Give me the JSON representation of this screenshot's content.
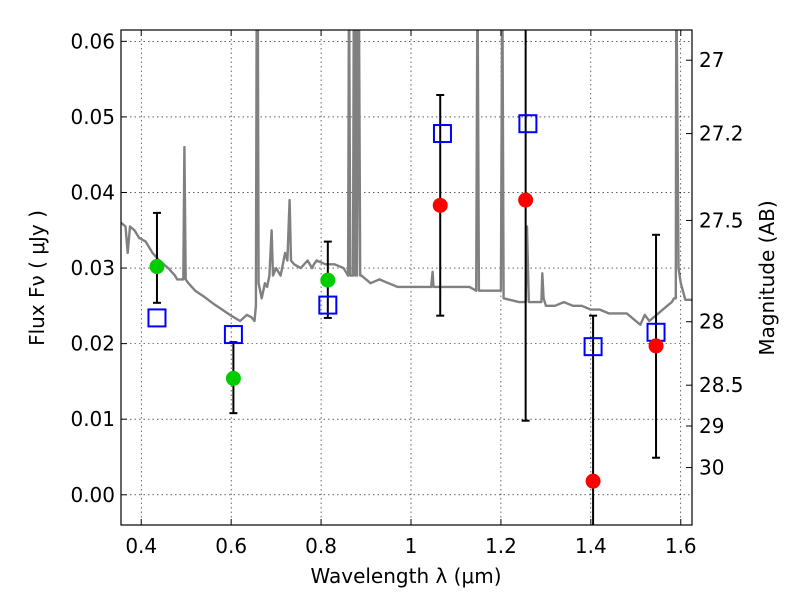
{
  "chart_data": {
    "type": "scatter",
    "xlabel": "Wavelength  λ (μm)",
    "ylabel": "Flux  Fν  ( μJy )",
    "y2label": "Magnitude (AB)",
    "xlim": [
      0.355,
      1.625
    ],
    "ylim": [
      -0.004,
      0.0615
    ],
    "grid": true,
    "x_ticks": [
      0.4,
      0.6,
      0.8,
      1.0,
      1.2,
      1.4,
      1.6
    ],
    "x_tick_labels": [
      "0.4",
      "0.6",
      "0.8",
      "1",
      "1.2",
      "1.4",
      "1.6"
    ],
    "y_ticks": [
      0.0,
      0.01,
      0.02,
      0.03,
      0.04,
      0.05,
      0.06
    ],
    "y_tick_labels": [
      "0.00",
      "0.01",
      "0.02",
      "0.03",
      "0.04",
      "0.05",
      "0.06"
    ],
    "y2_ticks": [
      {
        "label": "27",
        "flux": 0.0575
      },
      {
        "label": "27.2",
        "flux": 0.0478
      },
      {
        "label": "27.5",
        "flux": 0.0363
      },
      {
        "label": "28",
        "flux": 0.0229
      },
      {
        "label": "28.5",
        "flux": 0.0145
      },
      {
        "label": "29",
        "flux": 0.0091
      },
      {
        "label": "30",
        "flux": 0.0036
      }
    ],
    "model_spectrum": {
      "color": "#808080",
      "points": [
        [
          0.355,
          0.036
        ],
        [
          0.365,
          0.0355
        ],
        [
          0.37,
          0.032
        ],
        [
          0.375,
          0.0355
        ],
        [
          0.385,
          0.035
        ],
        [
          0.395,
          0.034
        ],
        [
          0.41,
          0.0335
        ],
        [
          0.425,
          0.032
        ],
        [
          0.44,
          0.031
        ],
        [
          0.46,
          0.03
        ],
        [
          0.475,
          0.029
        ],
        [
          0.48,
          0.0285
        ],
        [
          0.49,
          0.0285
        ],
        [
          0.4935,
          0.0285
        ],
        [
          0.496,
          0.046
        ],
        [
          0.499,
          0.0285
        ],
        [
          0.505,
          0.028
        ],
        [
          0.52,
          0.027
        ],
        [
          0.54,
          0.0262
        ],
        [
          0.56,
          0.0253
        ],
        [
          0.58,
          0.0245
        ],
        [
          0.6,
          0.0237
        ],
        [
          0.62,
          0.023
        ],
        [
          0.635,
          0.0238
        ],
        [
          0.645,
          0.0235
        ],
        [
          0.652,
          0.023
        ],
        [
          0.655,
          0.025
        ],
        [
          0.657,
          0.07
        ],
        [
          0.659,
          0.07
        ],
        [
          0.661,
          0.028
        ],
        [
          0.668,
          0.026
        ],
        [
          0.675,
          0.028
        ],
        [
          0.68,
          0.0275
        ],
        [
          0.685,
          0.029
        ],
        [
          0.69,
          0.035
        ],
        [
          0.693,
          0.029
        ],
        [
          0.7,
          0.03
        ],
        [
          0.71,
          0.029
        ],
        [
          0.72,
          0.032
        ],
        [
          0.725,
          0.031
        ],
        [
          0.73,
          0.039
        ],
        [
          0.733,
          0.031
        ],
        [
          0.74,
          0.0305
        ],
        [
          0.755,
          0.03
        ],
        [
          0.77,
          0.031
        ],
        [
          0.78,
          0.03
        ],
        [
          0.784,
          0.0305
        ],
        [
          0.79,
          0.031
        ],
        [
          0.81,
          0.0305
        ],
        [
          0.83,
          0.0305
        ],
        [
          0.85,
          0.03
        ],
        [
          0.86,
          0.029
        ],
        [
          0.862,
          0.07
        ],
        [
          0.865,
          0.029
        ],
        [
          0.871,
          0.029
        ],
        [
          0.873,
          0.07
        ],
        [
          0.876,
          0.029
        ],
        [
          0.878,
          0.07
        ],
        [
          0.88,
          0.029
        ],
        [
          0.884,
          0.07
        ],
        [
          0.887,
          0.029
        ],
        [
          0.89,
          0.029
        ],
        [
          0.91,
          0.028
        ],
        [
          0.93,
          0.0285
        ],
        [
          0.95,
          0.028
        ],
        [
          0.97,
          0.0275
        ],
        [
          0.99,
          0.0275
        ],
        [
          1.01,
          0.0275
        ],
        [
          1.03,
          0.0275
        ],
        [
          1.045,
          0.0275
        ],
        [
          1.048,
          0.0295
        ],
        [
          1.05,
          0.0275
        ],
        [
          1.07,
          0.0275
        ],
        [
          1.1,
          0.0275
        ],
        [
          1.13,
          0.0275
        ],
        [
          1.145,
          0.027
        ],
        [
          1.148,
          0.07
        ],
        [
          1.151,
          0.027
        ],
        [
          1.17,
          0.027
        ],
        [
          1.19,
          0.027
        ],
        [
          1.2,
          0.027
        ],
        [
          1.203,
          0.07
        ],
        [
          1.206,
          0.026
        ],
        [
          1.22,
          0.0258
        ],
        [
          1.24,
          0.0255
        ],
        [
          1.255,
          0.0255
        ],
        [
          1.258,
          0.0355
        ],
        [
          1.262,
          0.0255
        ],
        [
          1.28,
          0.0255
        ],
        [
          1.29,
          0.0255
        ],
        [
          1.292,
          0.0293
        ],
        [
          1.295,
          0.026
        ],
        [
          1.3,
          0.025
        ],
        [
          1.32,
          0.025
        ],
        [
          1.34,
          0.0255
        ],
        [
          1.36,
          0.025
        ],
        [
          1.38,
          0.025
        ],
        [
          1.4,
          0.0245
        ],
        [
          1.42,
          0.0245
        ],
        [
          1.44,
          0.024
        ],
        [
          1.46,
          0.024
        ],
        [
          1.48,
          0.024
        ],
        [
          1.5,
          0.023
        ],
        [
          1.51,
          0.0225
        ],
        [
          1.52,
          0.0238
        ],
        [
          1.53,
          0.023
        ],
        [
          1.54,
          0.0235
        ],
        [
          1.55,
          0.024
        ],
        [
          1.56,
          0.0245
        ],
        [
          1.57,
          0.025
        ],
        [
          1.58,
          0.0255
        ],
        [
          1.585,
          0.026
        ],
        [
          1.589,
          0.026
        ],
        [
          1.59,
          0.07
        ],
        [
          1.595,
          0.03
        ],
        [
          1.6,
          0.028
        ],
        [
          1.61,
          0.0258
        ],
        [
          1.625,
          0.0258
        ]
      ]
    },
    "model_points": {
      "color": "#0000ff",
      "x": [
        0.435,
        0.605,
        0.815,
        1.07,
        1.26,
        1.405,
        1.545
      ],
      "y": [
        0.0234,
        0.0212,
        0.0251,
        0.0478,
        0.0491,
        0.0196,
        0.0215
      ]
    },
    "observed": [
      {
        "x": 0.435,
        "y": 0.0302,
        "yerr_low": 0.0254,
        "yerr_high": 0.0373,
        "color": "#00cc00"
      },
      {
        "x": 0.605,
        "y": 0.0154,
        "yerr_low": 0.0108,
        "yerr_high": 0.0202,
        "color": "#00cc00"
      },
      {
        "x": 0.815,
        "y": 0.0284,
        "yerr_low": 0.0234,
        "yerr_high": 0.0335,
        "color": "#00cc00"
      },
      {
        "x": 1.065,
        "y": 0.0383,
        "yerr_low": 0.0237,
        "yerr_high": 0.0529,
        "color": "#ff0000"
      },
      {
        "x": 1.255,
        "y": 0.039,
        "yerr_low": 0.0098,
        "yerr_high": 0.07,
        "color": "#ff0000"
      },
      {
        "x": 1.405,
        "y": 0.0018,
        "yerr_low": -0.005,
        "yerr_high": 0.0237,
        "color": "#ff0000"
      },
      {
        "x": 1.545,
        "y": 0.0197,
        "yerr_low": 0.0049,
        "yerr_high": 0.0344,
        "color": "#ff0000"
      }
    ]
  }
}
